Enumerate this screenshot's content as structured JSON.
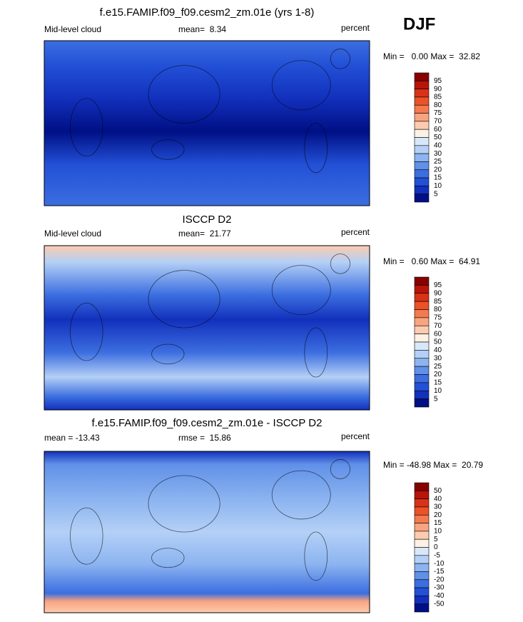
{
  "header": {
    "season": "DJF"
  },
  "panels": [
    {
      "title": "f.e15.FAMIP.f09_f09.cesm2_zm.01e (yrs 1-8)",
      "left": "Mid-level cloud",
      "center": "mean=  8.34",
      "right": "percent",
      "minmax": "Min =   0.00 Max =  32.82",
      "colorbar": {
        "labels": [
          "95",
          "90",
          "85",
          "80",
          "75",
          "70",
          "60",
          "50",
          "40",
          "30",
          "25",
          "20",
          "15",
          "10",
          "5"
        ],
        "colors": [
          "#870000",
          "#b8140a",
          "#d93218",
          "#ec5228",
          "#f47a50",
          "#f9a480",
          "#fccbb0",
          "#fdf0e4",
          "#d8e8fb",
          "#b4d0f6",
          "#8cb4f0",
          "#6090e8",
          "#3c6ee0",
          "#2250d6",
          "#1230bc",
          "#000f85"
        ]
      }
    },
    {
      "title": "ISCCP D2",
      "left": "Mid-level cloud",
      "center": "mean=  21.77",
      "right": "percent",
      "minmax": "Min =   0.60 Max =  64.91",
      "colorbar": {
        "labels": [
          "95",
          "90",
          "85",
          "80",
          "75",
          "70",
          "60",
          "50",
          "40",
          "30",
          "25",
          "20",
          "15",
          "10",
          "5"
        ],
        "colors": [
          "#870000",
          "#b8140a",
          "#d93218",
          "#ec5228",
          "#f47a50",
          "#f9a480",
          "#fccbb0",
          "#fdf0e4",
          "#d8e8fb",
          "#b4d0f6",
          "#8cb4f0",
          "#6090e8",
          "#3c6ee0",
          "#2250d6",
          "#1230bc",
          "#000f85"
        ]
      }
    },
    {
      "title": "f.e15.FAMIP.f09_f09.cesm2_zm.01e - ISCCP D2",
      "left": "mean = -13.43",
      "center": "rmse =  15.86",
      "right": "percent",
      "minmax": "Min = -48.98 Max =  20.79",
      "colorbar": {
        "labels": [
          "50",
          "40",
          "30",
          "20",
          "15",
          "10",
          "5",
          "0",
          "-5",
          "-10",
          "-15",
          "-20",
          "-30",
          "-40",
          "-50"
        ],
        "colors": [
          "#870000",
          "#b8140a",
          "#d93218",
          "#ec5228",
          "#f47a50",
          "#f9a480",
          "#fccbb0",
          "#fdf0e4",
          "#d8e8fb",
          "#b4d0f6",
          "#8cb4f0",
          "#6090e8",
          "#3c6ee0",
          "#2250d6",
          "#1230bc",
          "#000f85"
        ]
      }
    }
  ]
}
